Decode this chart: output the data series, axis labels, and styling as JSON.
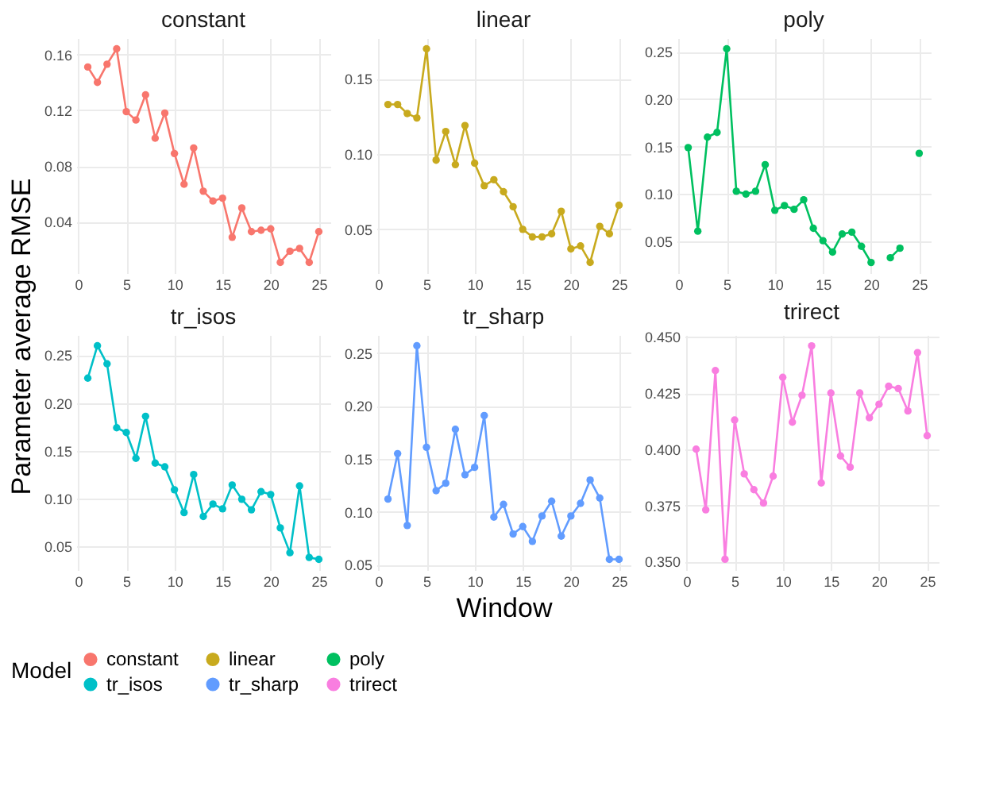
{
  "chart_data": [
    {
      "type": "line",
      "title": "constant",
      "ylabel": "Parameter average RMSE",
      "legend": "bottom",
      "legend_title": "Model",
      "marker": "circle",
      "grid": true,
      "xlim": [
        -0.2,
        26.2
      ],
      "xticks": [
        0,
        5,
        10,
        15,
        20,
        25
      ],
      "ylim": [
        0.0033,
        0.1717
      ],
      "yticks": [
        0.04,
        0.08,
        0.12,
        0.16
      ],
      "x": [
        1,
        2,
        3,
        4,
        5,
        6,
        7,
        8,
        9,
        10,
        11,
        12,
        13,
        14,
        15,
        16,
        17,
        18,
        19,
        20,
        21,
        22,
        23,
        24,
        25
      ],
      "series": [
        {
          "name": "constant",
          "color": "#f8766d",
          "values": [
            0.151,
            0.14,
            0.153,
            0.164,
            0.119,
            0.113,
            0.131,
            0.1,
            0.118,
            0.089,
            0.067,
            0.093,
            0.062,
            0.055,
            0.057,
            0.029,
            0.05,
            0.033,
            0.034,
            0.035,
            0.011,
            0.019,
            0.021,
            0.011,
            0.033
          ]
        }
      ]
    },
    {
      "type": "line",
      "title": "linear",
      "marker": "circle",
      "grid": true,
      "xlim": [
        -0.2,
        26.2
      ],
      "xticks": [
        0,
        5,
        10,
        15,
        20,
        25
      ],
      "ylim": [
        0.0209,
        0.1771
      ],
      "yticks": [
        0.05,
        {
          "value": 0.1,
          "label": "0.10"
        },
        0.15
      ],
      "x": [
        1,
        2,
        3,
        4,
        5,
        6,
        7,
        8,
        9,
        10,
        11,
        12,
        13,
        14,
        15,
        16,
        17,
        18,
        19,
        20,
        21,
        22,
        23,
        24,
        25
      ],
      "series": [
        {
          "name": "linear",
          "color": "#c8aa1e",
          "values": [
            0.133,
            0.133,
            0.127,
            0.124,
            0.17,
            0.096,
            0.115,
            0.093,
            0.119,
            0.094,
            0.079,
            0.083,
            0.075,
            0.065,
            0.05,
            0.045,
            0.045,
            0.047,
            0.062,
            0.037,
            0.039,
            0.028,
            0.052,
            0.047,
            0.066
          ]
        }
      ]
    },
    {
      "type": "line",
      "title": "poly",
      "marker": "circle",
      "grid": true,
      "xlim": [
        -0.2,
        26.2
      ],
      "xticks": [
        0,
        5,
        10,
        15,
        20,
        25
      ],
      "ylim": [
        0.0168,
        0.2643
      ],
      "yticks": [
        0.05,
        {
          "value": 0.1,
          "label": "0.10"
        },
        0.15,
        {
          "value": 0.2,
          "label": "0.20"
        },
        0.25
      ],
      "x": [
        1,
        2,
        3,
        4,
        5,
        6,
        7,
        8,
        9,
        10,
        11,
        12,
        13,
        14,
        15,
        16,
        17,
        18,
        19,
        20,
        21,
        22,
        23,
        24,
        25
      ],
      "series": [
        {
          "name": "poly",
          "color": "#00c060",
          "values": [
            0.149,
            0.061,
            0.16,
            0.165,
            0.253,
            0.103,
            0.1,
            0.103,
            0.131,
            0.083,
            0.088,
            0.084,
            0.094,
            0.064,
            0.051,
            0.039,
            0.058,
            0.06,
            0.045,
            0.028,
            null,
            0.033,
            0.043,
            null,
            0.143
          ]
        }
      ]
    },
    {
      "type": "line",
      "title": "tr_isos",
      "marker": "circle",
      "grid": true,
      "xlim": [
        -0.2,
        26.2
      ],
      "xticks": [
        0,
        5,
        10,
        15,
        20,
        25
      ],
      "ylim": [
        0.0248,
        0.2712
      ],
      "yticks": [
        0.05,
        {
          "value": 0.1,
          "label": "0.10"
        },
        0.15,
        {
          "value": 0.2,
          "label": "0.20"
        },
        0.25
      ],
      "x": [
        1,
        2,
        3,
        4,
        5,
        6,
        7,
        8,
        9,
        10,
        11,
        12,
        13,
        14,
        15,
        16,
        17,
        18,
        19,
        20,
        21,
        22,
        23,
        24,
        25
      ],
      "series": [
        {
          "name": "tr_isos",
          "color": "#00c0c8",
          "values": [
            0.226,
            0.26,
            0.241,
            0.174,
            0.169,
            0.142,
            0.186,
            0.137,
            0.133,
            0.109,
            0.085,
            0.125,
            0.081,
            0.094,
            0.089,
            0.114,
            0.099,
            0.088,
            0.107,
            0.104,
            0.069,
            0.043,
            0.113,
            0.038,
            0.036
          ]
        }
      ]
    },
    {
      "type": "line",
      "title": "tr_sharp",
      "xlabel": "Window",
      "marker": "circle",
      "grid": true,
      "xlim": [
        -0.2,
        26.2
      ],
      "xticks": [
        0,
        5,
        10,
        15,
        20,
        25
      ],
      "ylim": [
        0.0449,
        0.2671
      ],
      "yticks": [
        0.05,
        {
          "value": 0.1,
          "label": "0.10"
        },
        0.15,
        {
          "value": 0.2,
          "label": "0.20"
        },
        0.25
      ],
      "x": [
        1,
        2,
        3,
        4,
        5,
        6,
        7,
        8,
        9,
        10,
        11,
        12,
        13,
        14,
        15,
        16,
        17,
        18,
        19,
        20,
        21,
        22,
        23,
        24,
        25
      ],
      "series": [
        {
          "name": "tr_sharp",
          "color": "#619cff",
          "values": [
            0.112,
            0.155,
            0.087,
            0.257,
            0.161,
            0.12,
            0.127,
            0.178,
            0.135,
            0.142,
            0.191,
            0.095,
            0.107,
            0.079,
            0.086,
            0.072,
            0.096,
            0.11,
            0.077,
            0.096,
            0.108,
            0.13,
            0.113,
            0.055,
            0.055
          ]
        }
      ]
    },
    {
      "type": "line",
      "title": "trirect",
      "marker": "circle",
      "grid": true,
      "xlim": [
        -0.2,
        26.2
      ],
      "xticks": [
        0,
        5,
        10,
        15,
        20,
        25
      ],
      "ylim": [
        0.3462,
        0.4508
      ],
      "yticks": [
        {
          "value": 0.35,
          "label": "0.350"
        },
        0.375,
        {
          "value": 0.4,
          "label": "0.400"
        },
        0.425,
        {
          "value": 0.45,
          "label": "0.450"
        }
      ],
      "x": [
        1,
        2,
        3,
        4,
        5,
        6,
        7,
        8,
        9,
        10,
        11,
        12,
        13,
        14,
        15,
        16,
        17,
        18,
        19,
        20,
        21,
        22,
        23,
        24,
        25
      ],
      "series": [
        {
          "name": "trirect",
          "color": "#f97ee0",
          "values": [
            0.4,
            0.373,
            0.435,
            0.351,
            0.413,
            0.389,
            0.382,
            0.376,
            0.388,
            0.432,
            0.412,
            0.424,
            0.446,
            0.385,
            0.425,
            0.397,
            0.392,
            0.425,
            0.414,
            0.42,
            0.428,
            0.427,
            0.417,
            0.443,
            0.406
          ]
        }
      ]
    }
  ]
}
